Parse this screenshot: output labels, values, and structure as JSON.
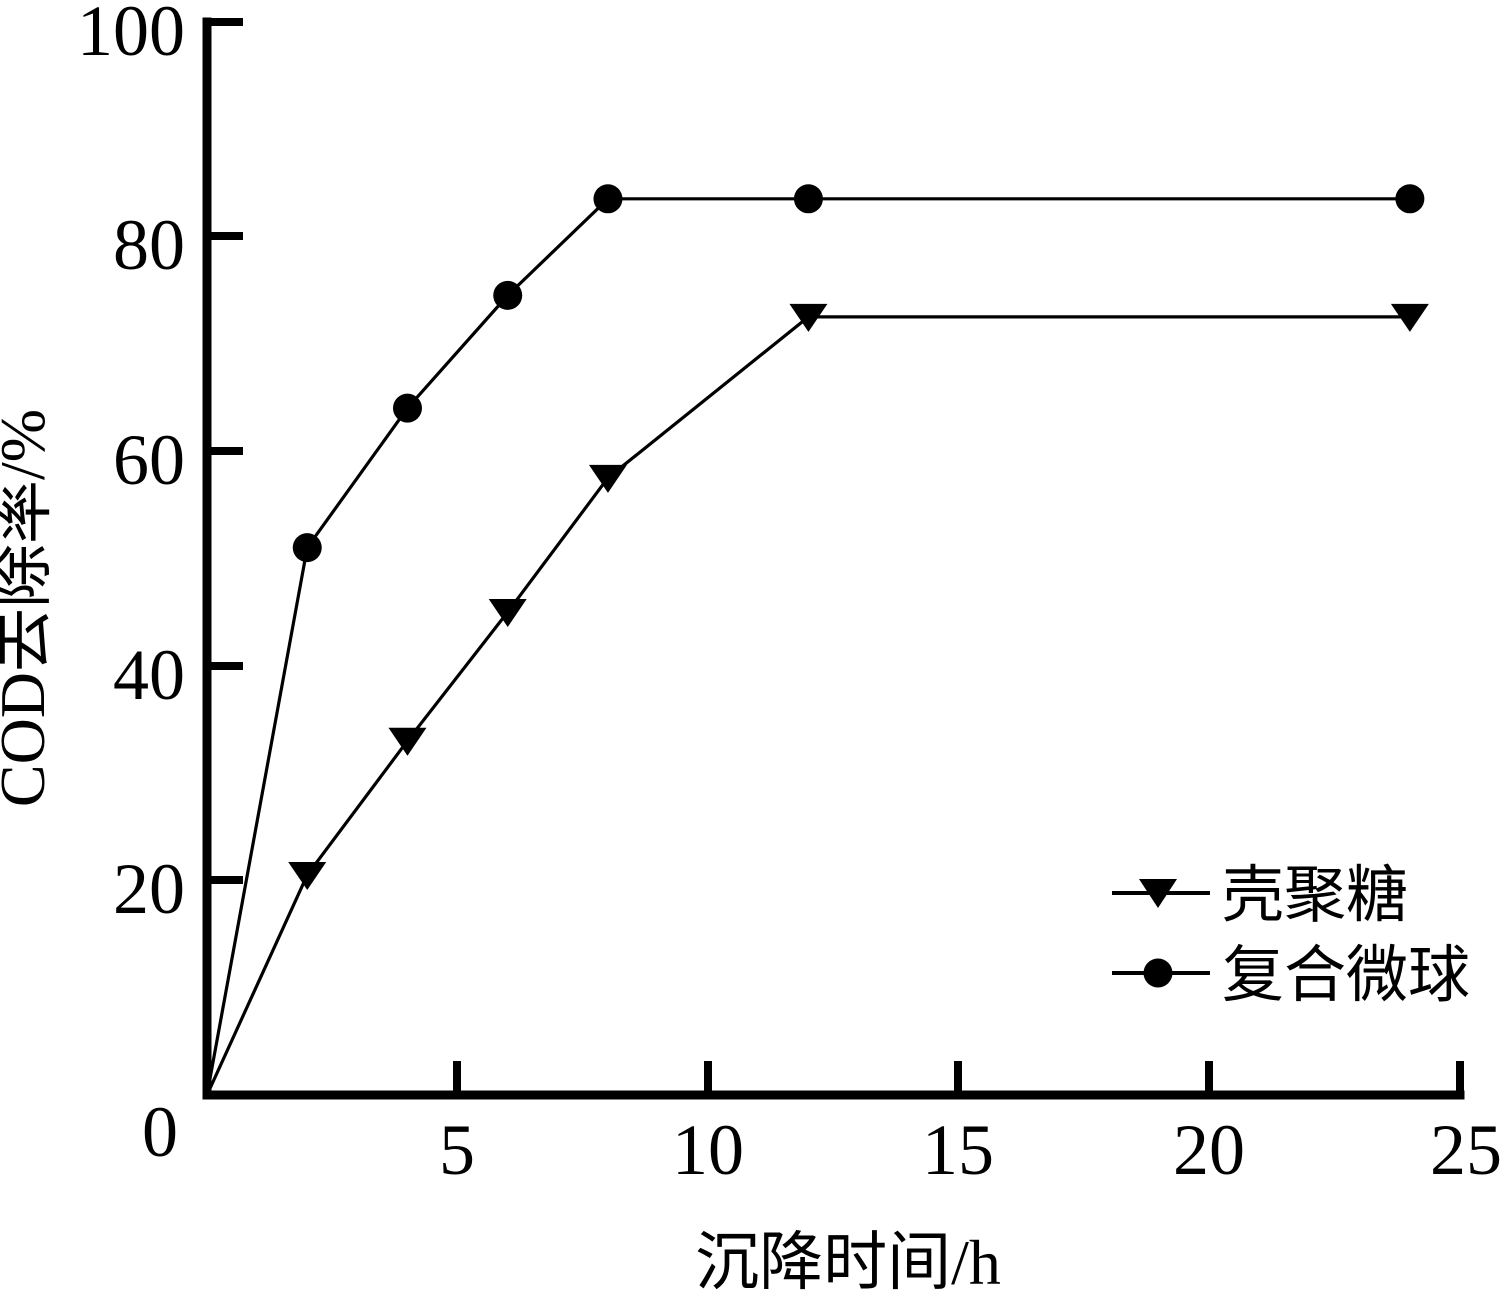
{
  "chart_data": {
    "type": "line",
    "title": "",
    "xlabel": "沉降时间/h",
    "ylabel": "COD去除率/%",
    "xlim": [
      0,
      25
    ],
    "ylim": [
      0,
      100
    ],
    "grid": false,
    "axis_color": "#000000",
    "background_color": "#ffffff",
    "origin_label": "0",
    "xticks": {
      "values": [
        5,
        10,
        15,
        20,
        25
      ],
      "labels": [
        "5",
        "10",
        "15",
        "20",
        "25"
      ]
    },
    "yticks": {
      "values": [
        20,
        40,
        60,
        80,
        100
      ],
      "labels": [
        "20",
        "40",
        "60",
        "80",
        "100"
      ]
    },
    "legend_position": "inside-lower-right",
    "series": [
      {
        "name": "壳聚糖",
        "marker": "triangle-down",
        "color": "#000000",
        "x": [
          0,
          2,
          4,
          6,
          8,
          12,
          24
        ],
        "y": [
          0,
          20.5,
          33,
          45,
          57.5,
          72.5,
          72.5
        ]
      },
      {
        "name": "复合微球",
        "marker": "circle",
        "color": "#000000",
        "x": [
          0,
          2,
          4,
          6,
          8,
          12,
          24
        ],
        "y": [
          0,
          51,
          64,
          74.5,
          83.5,
          83.5,
          83.5
        ]
      }
    ]
  }
}
